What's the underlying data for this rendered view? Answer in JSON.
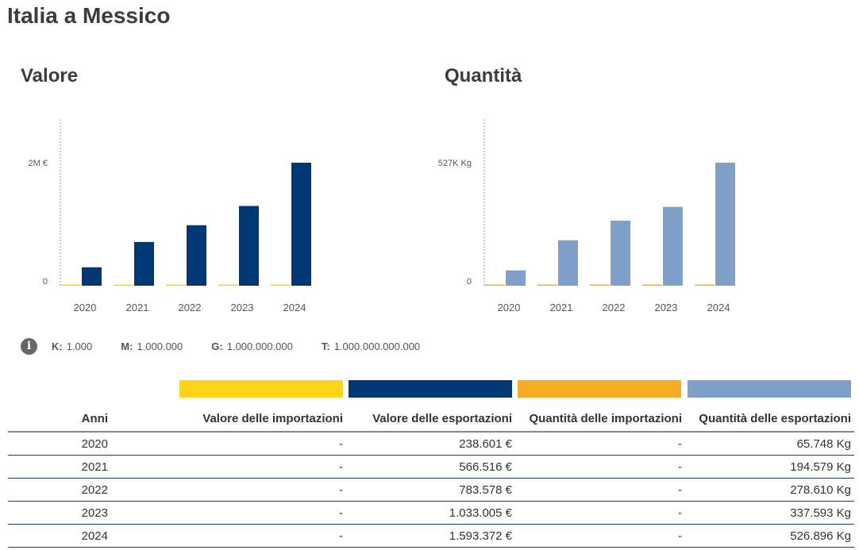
{
  "page_title": "Italia a Messico",
  "units_legend": [
    {
      "key": "K:",
      "value": "1.000"
    },
    {
      "key": "M:",
      "value": "1.000.000"
    },
    {
      "key": "G:",
      "value": "1.000.000.000"
    },
    {
      "key": "T:",
      "value": "1.000.000.000.000"
    }
  ],
  "colors": {
    "imports_value": "#fdd417",
    "exports_value": "#003876",
    "imports_quantity": "#f5ad23",
    "exports_quantity": "#7fa1c9"
  },
  "table": {
    "headers": [
      "Anni",
      "Valore delle importazioni",
      "Valore delle esportazioni",
      "Quantità delle importazioni",
      "Quantità delle esportazioni"
    ],
    "rows": [
      [
        "2020",
        "-",
        "238.601 €",
        "-",
        "65.748 Kg"
      ],
      [
        "2021",
        "-",
        "566.516 €",
        "-",
        "194.579 Kg"
      ],
      [
        "2022",
        "-",
        "783.578 €",
        "-",
        "278.610 Kg"
      ],
      [
        "2023",
        "-",
        "1.033.005 €",
        "-",
        "337.593 Kg"
      ],
      [
        "2024",
        "-",
        "1.593.372 €",
        "-",
        "526.896 Kg"
      ]
    ]
  },
  "chart_data": [
    {
      "type": "bar",
      "title": "Valore",
      "categories": [
        "2020",
        "2021",
        "2022",
        "2023",
        "2024"
      ],
      "series": [
        {
          "name": "Valore delle importazioni",
          "values": [
            0,
            0,
            0,
            0,
            0
          ],
          "color": "#fdd417"
        },
        {
          "name": "Valore delle esportazioni",
          "values": [
            238601,
            566516,
            783578,
            1033005,
            1593372
          ],
          "color": "#003876"
        }
      ],
      "yticks": [
        {
          "value": 0,
          "label": "0"
        },
        {
          "value": 1593372,
          "label": "2M €"
        }
      ],
      "ylim": [
        0,
        1593372
      ],
      "grid": false,
      "xlabel": "",
      "ylabel": ""
    },
    {
      "type": "bar",
      "title": "Quantità",
      "categories": [
        "2020",
        "2021",
        "2022",
        "2023",
        "2024"
      ],
      "series": [
        {
          "name": "Quantità delle importazioni",
          "values": [
            0,
            0,
            0,
            0,
            0
          ],
          "color": "#f5ad23"
        },
        {
          "name": "Quantità delle esportazioni",
          "values": [
            65748,
            194579,
            278610,
            337593,
            526896
          ],
          "color": "#7fa1c9"
        }
      ],
      "yticks": [
        {
          "value": 0,
          "label": "0"
        },
        {
          "value": 526896,
          "label": "527K Kg"
        }
      ],
      "ylim": [
        0,
        526896
      ],
      "grid": false,
      "xlabel": "",
      "ylabel": ""
    }
  ]
}
